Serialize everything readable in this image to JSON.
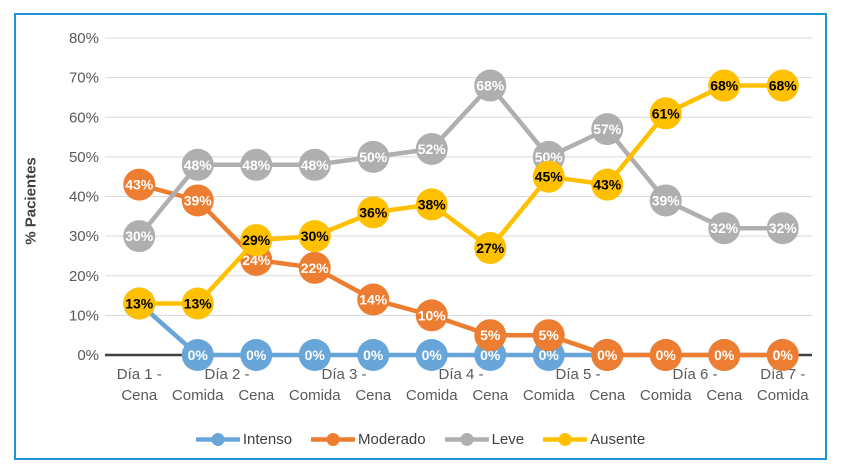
{
  "frame": {
    "border_color": "#1e93d6",
    "background": "#ffffff"
  },
  "y_axis": {
    "title": "% Pacientes",
    "tick_labels": [
      "0%",
      "10%",
      "20%",
      "30%",
      "40%",
      "50%",
      "60%",
      "70%",
      "80%"
    ]
  },
  "chart_data": {
    "type": "line",
    "title": "",
    "xlabel": "",
    "ylabel": "% Pacientes",
    "ylim": [
      0,
      80
    ],
    "ytick_step": 10,
    "ytick_format": "percent",
    "grid": true,
    "legend_position": "bottom",
    "categories": [
      "Día 1 - Cena",
      "Día 2 - Comida",
      "Día 2 - Cena",
      "Día 3 - Comida",
      "Día 3 - Cena",
      "Día 4 - Comida",
      "Día 4 - Cena",
      "Día 5 - Comida",
      "Día 5 - Cena",
      "Día 6 - Comida",
      "Día 6 - Cena",
      "Día 7 - Comida"
    ],
    "x_axis": {
      "meal_row": [
        "Cena",
        "Comida",
        "Cena",
        "Comida",
        "Cena",
        "Comida",
        "Cena",
        "Comida",
        "Cena",
        "Comida",
        "Cena",
        "Comida"
      ],
      "day_row": [
        {
          "label": "Día 1 -",
          "from": 0,
          "to": 0
        },
        {
          "label": "Día 2 -",
          "from": 1,
          "to": 2
        },
        {
          "label": "Día 3 -",
          "from": 3,
          "to": 4
        },
        {
          "label": "Día 4 -",
          "from": 5,
          "to": 6
        },
        {
          "label": "Día 5 -",
          "from": 7,
          "to": 8
        },
        {
          "label": "Día 6 -",
          "from": 9,
          "to": 10
        },
        {
          "label": "Día 7 -",
          "from": 11,
          "to": 11
        }
      ]
    },
    "series": [
      {
        "name": "Intenso",
        "color": "#68a6da",
        "label_color": "#ffffff",
        "values": [
          13,
          0,
          0,
          0,
          0,
          0,
          0,
          0,
          0,
          0,
          0,
          0
        ]
      },
      {
        "name": "Moderado",
        "color": "#ed7d31",
        "label_color": "#ffffff",
        "values": [
          43,
          39,
          24,
          22,
          14,
          10,
          5,
          5,
          0,
          0,
          0,
          0
        ]
      },
      {
        "name": "Leve",
        "color": "#afafaf",
        "label_color": "#ffffff",
        "values": [
          30,
          48,
          48,
          48,
          50,
          52,
          68,
          50,
          57,
          39,
          32,
          32
        ]
      },
      {
        "name": "Ausente",
        "color": "#ffc000",
        "label_color": "#000000",
        "values": [
          13,
          13,
          29,
          30,
          36,
          38,
          27,
          45,
          43,
          61,
          68,
          68
        ]
      }
    ],
    "style": {
      "gridline_color": "#d9d9d9",
      "axis_line_color": "#404040",
      "tick_text_color": "#595959",
      "legend_text_color": "#404040",
      "line_width": 4.5,
      "marker_radius": 16
    }
  }
}
